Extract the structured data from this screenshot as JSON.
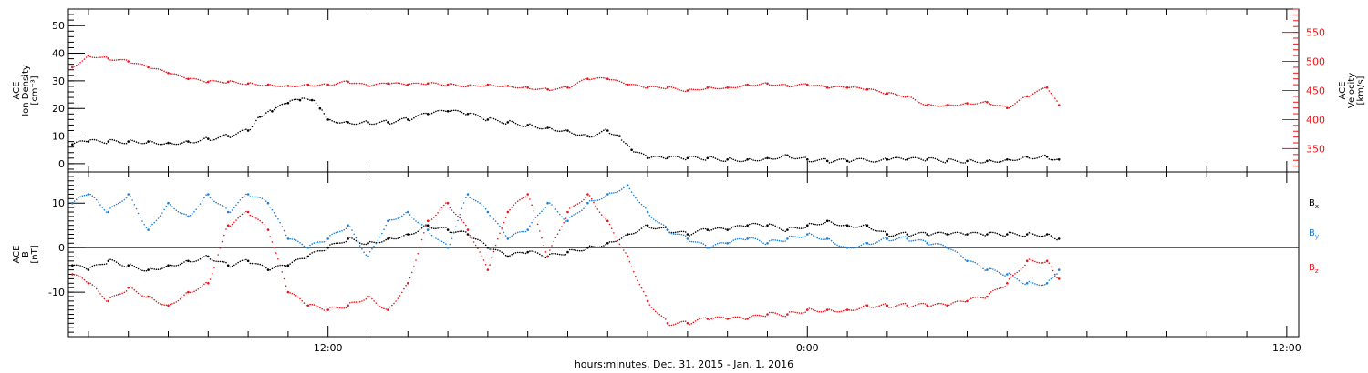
{
  "figure": {
    "xlabel": "hours:minutes, Dec. 31, 2015 - Jan.  1, 2016",
    "x_axis": {
      "unit": "hours since 2015-12-31 00:00 UT",
      "range": [
        5.5,
        36.3
      ],
      "tick_labels": [
        {
          "x": 12,
          "label": "12:00"
        },
        {
          "x": 24,
          "label": "0:00"
        },
        {
          "x": 36,
          "label": "12:00"
        }
      ]
    }
  },
  "chart_data": [
    {
      "type": "scatter",
      "panel": "top",
      "ylabel_lines": [
        "ACE",
        "Ion Density",
        "[cm⁻³]"
      ],
      "ylim": [
        -3,
        56
      ],
      "y_ticks": [
        0,
        10,
        20,
        30,
        40,
        50
      ],
      "y2label_lines": [
        "ACE",
        "Velocity",
        "[km/s]"
      ],
      "y2lim": [
        310,
        590
      ],
      "y2_ticks": [
        350,
        400,
        450,
        500,
        550
      ],
      "y2_color": "#e8151b",
      "series": [
        {
          "key": "density",
          "axis": "left",
          "color": "#000000",
          "points": [
            [
              5.6,
              7
            ],
            [
              6,
              8
            ],
            [
              6.5,
              8
            ],
            [
              7,
              8
            ],
            [
              7.5,
              8
            ],
            [
              8,
              7.5
            ],
            [
              8.5,
              8
            ],
            [
              9,
              9
            ],
            [
              9.5,
              10
            ],
            [
              10,
              12
            ],
            [
              10.3,
              17
            ],
            [
              10.6,
              19
            ],
            [
              11,
              22
            ],
            [
              11.3,
              23
            ],
            [
              11.6,
              23
            ],
            [
              11.8,
              20
            ],
            [
              12,
              16
            ],
            [
              12.5,
              15
            ],
            [
              13,
              15
            ],
            [
              13.5,
              15
            ],
            [
              14,
              16
            ],
            [
              14.5,
              18
            ],
            [
              15,
              19
            ],
            [
              15.5,
              18
            ],
            [
              16,
              16
            ],
            [
              16.5,
              15
            ],
            [
              17,
              14
            ],
            [
              17.5,
              13
            ],
            [
              18,
              12
            ],
            [
              18.5,
              10
            ],
            [
              19,
              12
            ],
            [
              19.3,
              10
            ],
            [
              19.6,
              5
            ],
            [
              20,
              2
            ],
            [
              20.5,
              2
            ],
            [
              21,
              2
            ],
            [
              21.5,
              2
            ],
            [
              22,
              1.5
            ],
            [
              22.5,
              1.5
            ],
            [
              23,
              2
            ],
            [
              23.5,
              3
            ],
            [
              24,
              1.5
            ],
            [
              24.5,
              1
            ],
            [
              25,
              1
            ],
            [
              26,
              1.5
            ],
            [
              26.5,
              1.5
            ],
            [
              27,
              1.5
            ],
            [
              27.5,
              1
            ],
            [
              28,
              1
            ],
            [
              28.5,
              1
            ],
            [
              29,
              1.5
            ],
            [
              29.5,
              2.5
            ],
            [
              30,
              2.5
            ],
            [
              30.3,
              1.5
            ]
          ]
        },
        {
          "key": "velocity",
          "axis": "right",
          "color": "#e8151b",
          "points": [
            [
              5.6,
              490
            ],
            [
              6,
              510
            ],
            [
              6.5,
              505
            ],
            [
              7,
              500
            ],
            [
              7.5,
              490
            ],
            [
              8,
              480
            ],
            [
              8.5,
              470
            ],
            [
              9,
              465
            ],
            [
              9.5,
              465
            ],
            [
              10,
              462
            ],
            [
              10.5,
              460
            ],
            [
              11,
              458
            ],
            [
              11.5,
              460
            ],
            [
              12,
              460
            ],
            [
              12.5,
              465
            ],
            [
              13,
              458
            ],
            [
              13.5,
              462
            ],
            [
              14,
              460
            ],
            [
              14.5,
              462
            ],
            [
              15,
              460
            ],
            [
              15.5,
              458
            ],
            [
              16,
              460
            ],
            [
              16.5,
              458
            ],
            [
              17,
              455
            ],
            [
              17.5,
              452
            ],
            [
              18,
              455
            ],
            [
              18.5,
              470
            ],
            [
              19,
              470
            ],
            [
              19.5,
              460
            ],
            [
              20,
              455
            ],
            [
              20.5,
              455
            ],
            [
              21,
              450
            ],
            [
              21.5,
              455
            ],
            [
              22,
              455
            ],
            [
              22.5,
              460
            ],
            [
              23,
              462
            ],
            [
              23.5,
              458
            ],
            [
              24,
              460
            ],
            [
              24.5,
              455
            ],
            [
              25,
              455
            ],
            [
              25.5,
              452
            ],
            [
              26,
              445
            ],
            [
              26.5,
              440
            ],
            [
              27,
              425
            ],
            [
              27.5,
              425
            ],
            [
              28,
              428
            ],
            [
              28.5,
              430
            ],
            [
              29,
              420
            ],
            [
              29.5,
              440
            ],
            [
              30,
              455
            ],
            [
              30.3,
              425
            ]
          ]
        }
      ]
    },
    {
      "type": "scatter",
      "panel": "bottom",
      "ylabel_lines": [
        "ACE",
        "B",
        "[nT]"
      ],
      "ylim": [
        -20,
        17
      ],
      "y_ticks": [
        -10,
        0,
        10
      ],
      "zero_line": true,
      "legend_position": "right",
      "series": [
        {
          "name": "Bx",
          "color": "#000000",
          "points": [
            [
              5.6,
              -4
            ],
            [
              6,
              -5
            ],
            [
              6.5,
              -3
            ],
            [
              7,
              -4
            ],
            [
              7.5,
              -5
            ],
            [
              8,
              -4
            ],
            [
              8.5,
              -3
            ],
            [
              9,
              -2
            ],
            [
              9.5,
              -4
            ],
            [
              10,
              -3
            ],
            [
              10.5,
              -5
            ],
            [
              11,
              -4
            ],
            [
              11.5,
              -2
            ],
            [
              12,
              0
            ],
            [
              12.5,
              2
            ],
            [
              13,
              1
            ],
            [
              13.5,
              2
            ],
            [
              14,
              3
            ],
            [
              14.5,
              5
            ],
            [
              15,
              4
            ],
            [
              15.5,
              3
            ],
            [
              16,
              0
            ],
            [
              16.5,
              -2
            ],
            [
              17,
              -1
            ],
            [
              17.5,
              -2
            ],
            [
              18,
              -1
            ],
            [
              18.5,
              0
            ],
            [
              19,
              1
            ],
            [
              19.5,
              3
            ],
            [
              20,
              5
            ],
            [
              20.5,
              4
            ],
            [
              21,
              3
            ],
            [
              21.5,
              4
            ],
            [
              22,
              4
            ],
            [
              22.5,
              5
            ],
            [
              23,
              5
            ],
            [
              23.5,
              4
            ],
            [
              24,
              5
            ],
            [
              24.5,
              6
            ],
            [
              25,
              5
            ],
            [
              25.5,
              5
            ],
            [
              26,
              3
            ],
            [
              26.5,
              3
            ],
            [
              27,
              3
            ],
            [
              27.5,
              3
            ],
            [
              28,
              3
            ],
            [
              28.5,
              3
            ],
            [
              29,
              3
            ],
            [
              29.5,
              3
            ],
            [
              30,
              3
            ],
            [
              30.3,
              2
            ]
          ]
        },
        {
          "name": "By",
          "color": "#1e7fd8",
          "points": [
            [
              5.6,
              10
            ],
            [
              6,
              12
            ],
            [
              6.5,
              8
            ],
            [
              7,
              12
            ],
            [
              7.5,
              4
            ],
            [
              8,
              10
            ],
            [
              8.5,
              7
            ],
            [
              9,
              12
            ],
            [
              9.5,
              8
            ],
            [
              10,
              12
            ],
            [
              10.5,
              10
            ],
            [
              11,
              2
            ],
            [
              11.5,
              0
            ],
            [
              12,
              2
            ],
            [
              12.5,
              5
            ],
            [
              13,
              -2
            ],
            [
              13.5,
              6
            ],
            [
              14,
              8
            ],
            [
              14.5,
              4
            ],
            [
              15,
              0
            ],
            [
              15.5,
              12
            ],
            [
              16,
              8
            ],
            [
              16.5,
              2
            ],
            [
              17,
              4
            ],
            [
              17.5,
              10
            ],
            [
              18,
              6
            ],
            [
              18.5,
              10
            ],
            [
              19,
              12
            ],
            [
              19.5,
              14
            ],
            [
              20,
              8
            ],
            [
              20.5,
              4
            ],
            [
              21,
              2
            ],
            [
              21.5,
              0
            ],
            [
              22,
              1
            ],
            [
              22.5,
              2
            ],
            [
              23,
              1
            ],
            [
              23.5,
              2
            ],
            [
              24,
              3
            ],
            [
              24.5,
              2
            ],
            [
              25,
              0
            ],
            [
              25.5,
              1
            ],
            [
              26,
              2
            ],
            [
              26.5,
              2
            ],
            [
              27,
              1
            ],
            [
              27.5,
              0
            ],
            [
              28,
              -3
            ],
            [
              28.5,
              -5
            ],
            [
              29,
              -6
            ],
            [
              29.5,
              -8
            ],
            [
              30,
              -8
            ],
            [
              30.3,
              -5
            ]
          ]
        },
        {
          "name": "Bz",
          "color": "#e8151b",
          "points": [
            [
              5.6,
              -6
            ],
            [
              6,
              -8
            ],
            [
              6.5,
              -12
            ],
            [
              7,
              -9
            ],
            [
              7.5,
              -11
            ],
            [
              8,
              -13
            ],
            [
              8.5,
              -10
            ],
            [
              9,
              -8
            ],
            [
              9.5,
              5
            ],
            [
              10,
              8
            ],
            [
              10.5,
              4
            ],
            [
              11,
              -10
            ],
            [
              11.5,
              -13
            ],
            [
              12,
              -14
            ],
            [
              12.5,
              -13
            ],
            [
              13,
              -11
            ],
            [
              13.5,
              -14
            ],
            [
              14,
              -8
            ],
            [
              14.5,
              6
            ],
            [
              15,
              10
            ],
            [
              15.5,
              4
            ],
            [
              16,
              -5
            ],
            [
              16.5,
              8
            ],
            [
              17,
              12
            ],
            [
              17.5,
              -2
            ],
            [
              18,
              8
            ],
            [
              18.5,
              12
            ],
            [
              19,
              6
            ],
            [
              19.5,
              -2
            ],
            [
              20,
              -12
            ],
            [
              20.5,
              -17
            ],
            [
              21,
              -17
            ],
            [
              21.5,
              -16
            ],
            [
              22,
              -16
            ],
            [
              22.5,
              -16
            ],
            [
              23,
              -15
            ],
            [
              23.5,
              -15
            ],
            [
              24,
              -14
            ],
            [
              24.5,
              -14
            ],
            [
              25,
              -14
            ],
            [
              25.5,
              -13
            ],
            [
              26,
              -13
            ],
            [
              26.5,
              -13
            ],
            [
              27,
              -13
            ],
            [
              27.5,
              -13
            ],
            [
              28,
              -12
            ],
            [
              28.5,
              -11
            ],
            [
              29,
              -8
            ],
            [
              29.5,
              -3
            ],
            [
              30,
              -3
            ],
            [
              30.3,
              -7
            ]
          ]
        }
      ]
    }
  ]
}
